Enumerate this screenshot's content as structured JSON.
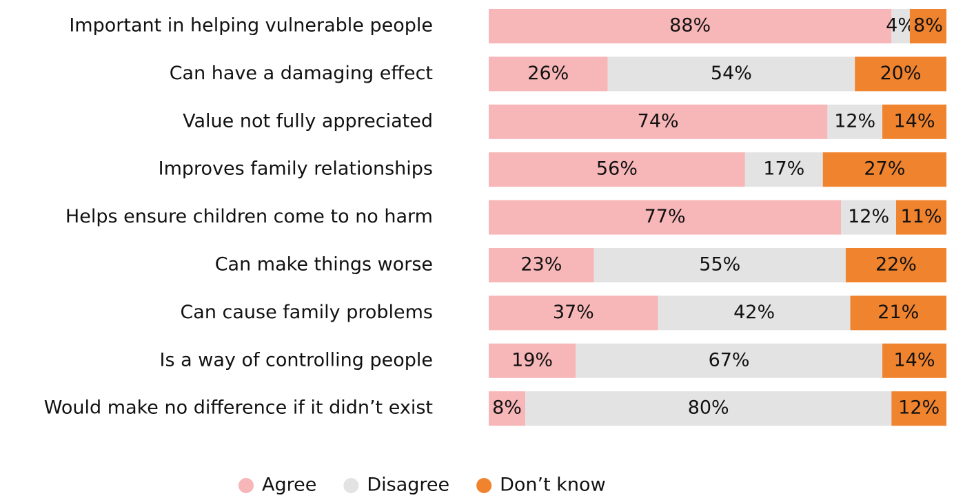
{
  "chart_data": {
    "type": "stacked-bar-horizontal",
    "categories": [
      "Important in helping vulnerable people",
      "Can have a damaging effect",
      "Value not fully appreciated",
      "Improves family relationships",
      "Helps ensure children come to no harm",
      "Can make things worse",
      "Can cause family problems",
      "Is a way of controlling people",
      "Would make no difference if it didn’t exist"
    ],
    "series": [
      {
        "name": "Agree",
        "color": "#f7b6b7",
        "values": [
          88,
          26,
          74,
          56,
          77,
          23,
          37,
          19,
          8
        ],
        "value_labels": [
          "88%",
          "26%",
          "74%",
          "56%",
          "77%",
          "23%",
          "37%",
          "19%",
          "8%"
        ]
      },
      {
        "name": "Disagree",
        "color": "#e3e3e3",
        "values": [
          4,
          54,
          12,
          17,
          12,
          55,
          42,
          67,
          80
        ],
        "value_labels": [
          "4%",
          "54%",
          "12%",
          "17%",
          "12%",
          "55%",
          "42%",
          "67%",
          "80%"
        ]
      },
      {
        "name": "Don’t know",
        "color": "#f0832e",
        "values": [
          8,
          20,
          14,
          27,
          11,
          22,
          21,
          14,
          12
        ],
        "value_labels": [
          "8%",
          "20%",
          "14%",
          "27%",
          "11%",
          "22%",
          "21%",
          "14%",
          "12%"
        ]
      }
    ],
    "legend": "bottom"
  }
}
